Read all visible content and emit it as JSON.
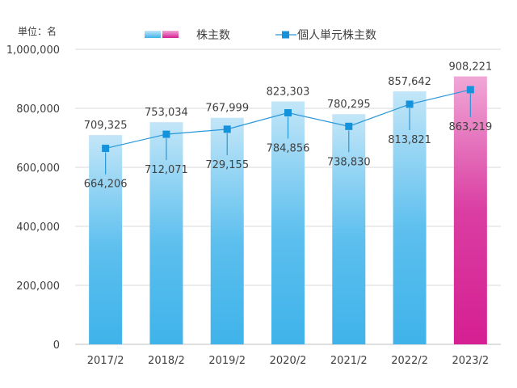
{
  "chart_data": {
    "type": "bar",
    "unit_label": "単位：名",
    "categories": [
      "2017/2",
      "2018/2",
      "2019/2",
      "2020/2",
      "2021/2",
      "2022/2",
      "2023/2"
    ],
    "series": [
      {
        "name": "株主数",
        "chart_type": "bar",
        "values": [
          709325,
          753034,
          767999,
          823303,
          780295,
          857642,
          908221
        ],
        "value_labels": [
          "709,325",
          "753,034",
          "767,999",
          "823,303",
          "780,295",
          "857,642",
          "908,221"
        ]
      },
      {
        "name": "個人単元株主数",
        "chart_type": "line",
        "values": [
          664206,
          712071,
          729155,
          784856,
          738830,
          813821,
          863219
        ],
        "value_labels": [
          "664,206",
          "712,071",
          "729,155",
          "784,856",
          "738,830",
          "813,821",
          "863,219"
        ]
      }
    ],
    "ylim": [
      0,
      1000000
    ],
    "yticks": [
      0,
      200000,
      400000,
      600000,
      800000,
      1000000
    ],
    "ytick_labels": [
      "0",
      "200,000",
      "400,000",
      "600,000",
      "800,000",
      "1,000,000"
    ],
    "grid": true,
    "legend_position": "top",
    "highlight_category": "2023/2",
    "colors": {
      "bar_top": "#c3e6f8",
      "bar_bottom": "#3fb3ea",
      "highlight_top": "#f0a7d6",
      "highlight_bottom": "#d51f92",
      "line": "#2a97d8",
      "marker": "#1592dc",
      "axis_text": "#404040",
      "grid": "#d9d9d9"
    }
  }
}
